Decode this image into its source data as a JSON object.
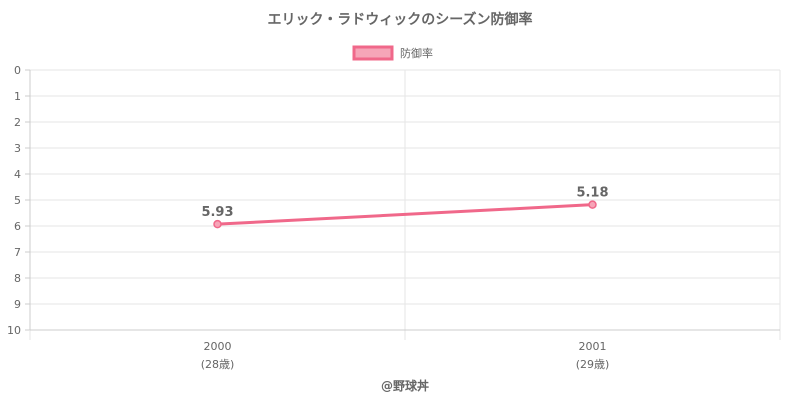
{
  "chart_data": {
    "type": "line",
    "title": "エリック・ラドウィックのシーズン防御率",
    "categories": [
      "2000",
      "2001"
    ],
    "category_sublabels": [
      "(28歳)",
      "(29歳)"
    ],
    "series": [
      {
        "name": "防御率",
        "values": [
          5.93,
          5.18
        ],
        "color": "#f0688a"
      }
    ],
    "ylim": [
      0,
      10
    ],
    "y_reversed": true,
    "y_ticks": [
      0,
      1,
      2,
      3,
      4,
      5,
      6,
      7,
      8,
      9,
      10
    ],
    "grid": true,
    "legend_position": "top"
  },
  "credit": "@野球丼"
}
